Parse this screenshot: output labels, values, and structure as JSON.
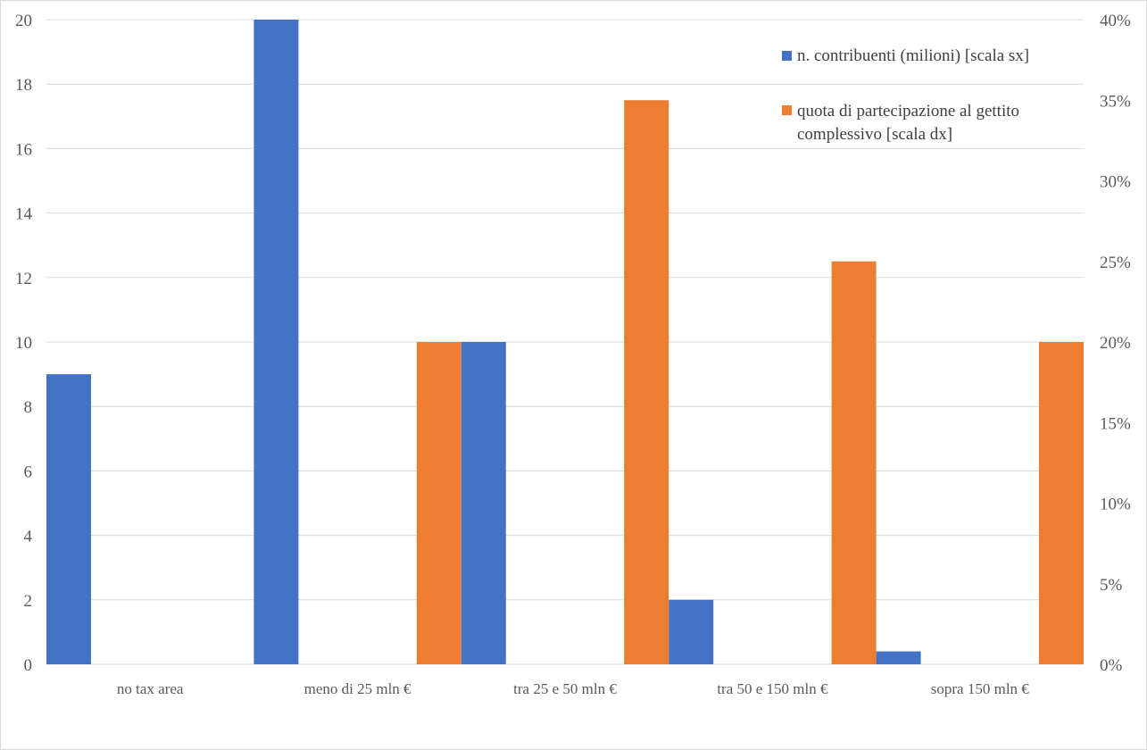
{
  "chart_data": {
    "type": "bar",
    "categories": [
      "no tax area",
      "meno di 25 mln €",
      "tra 25 e 50 mln €",
      "tra 50 e 150 mln €",
      "sopra 150 mln €"
    ],
    "series": [
      {
        "name": "n. contribuenti (milioni) [scala sx]",
        "axis": "left",
        "color": "#4472C4",
        "values": [
          9,
          20,
          10,
          2,
          0.4
        ]
      },
      {
        "name": "quota di partecipazione al gettito complessivo [scala dx]",
        "axis": "right",
        "color": "#ED7D31",
        "values": [
          null,
          0.2,
          0.35,
          0.25,
          0.2
        ]
      }
    ],
    "y_left": {
      "ylim": [
        0,
        20
      ],
      "ticks": [
        "0",
        "2",
        "4",
        "6",
        "8",
        "10",
        "12",
        "14",
        "16",
        "18",
        "20"
      ]
    },
    "y_right": {
      "ylim": [
        0,
        0.4
      ],
      "ticks": [
        "0%",
        "5%",
        "10%",
        "15%",
        "20%",
        "25%",
        "30%",
        "35%",
        "40%"
      ]
    },
    "grid": true,
    "legend_position": "top-right",
    "title": "",
    "xlabel": "",
    "ylabel": ""
  }
}
